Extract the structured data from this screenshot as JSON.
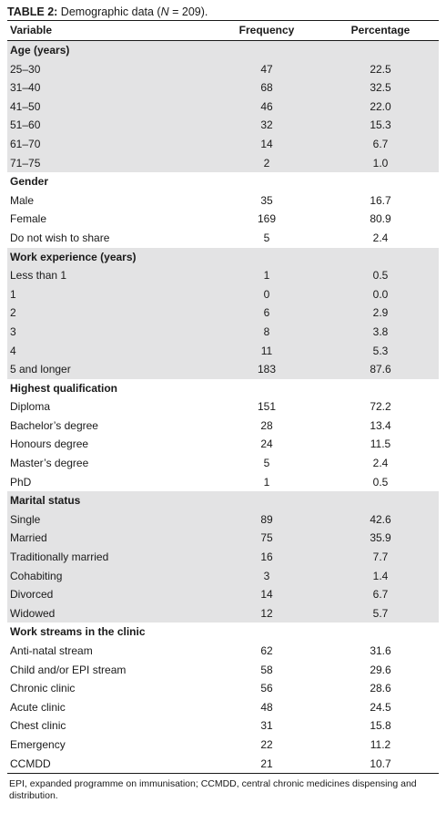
{
  "caption": {
    "label": "TABLE 2:",
    "text_before": " Demographic data (",
    "n_var": "N",
    "text_after": " = 209)."
  },
  "header": [
    "Variable",
    "Frequency",
    "Percentage"
  ],
  "groups": [
    {
      "title": "Age (years)",
      "rows": [
        [
          "25–30",
          "47",
          "22.5"
        ],
        [
          "31–40",
          "68",
          "32.5"
        ],
        [
          "41–50",
          "46",
          "22.0"
        ],
        [
          "51–60",
          "32",
          "15.3"
        ],
        [
          "61–70",
          "14",
          "6.7"
        ],
        [
          "71–75",
          "2",
          "1.0"
        ]
      ]
    },
    {
      "title": "Gender",
      "rows": [
        [
          "Male",
          "35",
          "16.7"
        ],
        [
          "Female",
          "169",
          "80.9"
        ],
        [
          "Do not wish to share",
          "5",
          "2.4"
        ]
      ]
    },
    {
      "title": "Work experience (years)",
      "rows": [
        [
          "Less than 1",
          "1",
          "0.5"
        ],
        [
          "1",
          "0",
          "0.0"
        ],
        [
          "2",
          "6",
          "2.9"
        ],
        [
          "3",
          "8",
          "3.8"
        ],
        [
          "4",
          "11",
          "5.3"
        ],
        [
          "5 and longer",
          "183",
          "87.6"
        ]
      ]
    },
    {
      "title": "Highest qualification",
      "rows": [
        [
          "Diploma",
          "151",
          "72.2"
        ],
        [
          "Bachelor’s degree",
          "28",
          "13.4"
        ],
        [
          "Honours degree",
          "24",
          "11.5"
        ],
        [
          "Master’s degree",
          "5",
          "2.4"
        ],
        [
          "PhD",
          "1",
          "0.5"
        ]
      ]
    },
    {
      "title": "Marital status",
      "rows": [
        [
          "Single",
          "89",
          "42.6"
        ],
        [
          "Married",
          "75",
          "35.9"
        ],
        [
          "Traditionally married",
          "16",
          "7.7"
        ],
        [
          "Cohabiting",
          "3",
          "1.4"
        ],
        [
          "Divorced",
          "14",
          "6.7"
        ],
        [
          "Widowed",
          "12",
          "5.7"
        ]
      ]
    },
    {
      "title": "Work streams in the clinic",
      "rows": [
        [
          "Anti-natal stream",
          "62",
          "31.6"
        ],
        [
          "Child and/or EPI stream",
          "58",
          "29.6"
        ],
        [
          "Chronic clinic",
          "56",
          "28.6"
        ],
        [
          "Acute clinic",
          "48",
          "24.5"
        ],
        [
          "Chest clinic",
          "31",
          "15.8"
        ],
        [
          "Emergency",
          "22",
          "11.2"
        ],
        [
          "CCMDD",
          "21",
          "10.7"
        ]
      ]
    }
  ],
  "colors": {
    "shade": "#e3e3e4",
    "rule": "#1a1a1a"
  },
  "footnote": "EPI, expanded programme on immunisation; CCMDD, central chronic medicines dispensing and distribution."
}
